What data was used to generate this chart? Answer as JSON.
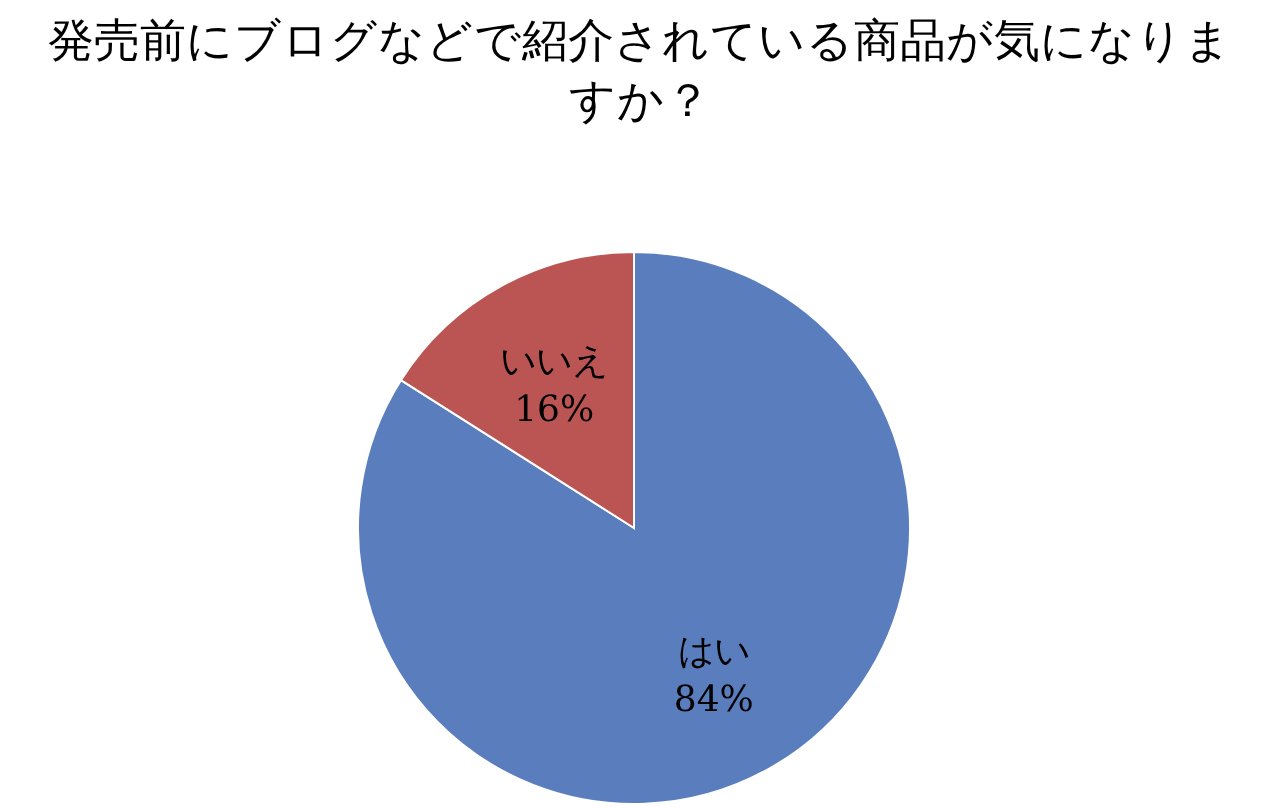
{
  "chart_data": {
    "type": "pie",
    "title": "発売前にブログなどで紹介されている商品が気になりますか？",
    "categories": [
      "はい",
      "いいえ"
    ],
    "values": [
      84,
      16
    ],
    "value_labels": [
      "84%",
      "16%"
    ],
    "colors": [
      "#5a7ebd",
      "#bb5553"
    ]
  }
}
